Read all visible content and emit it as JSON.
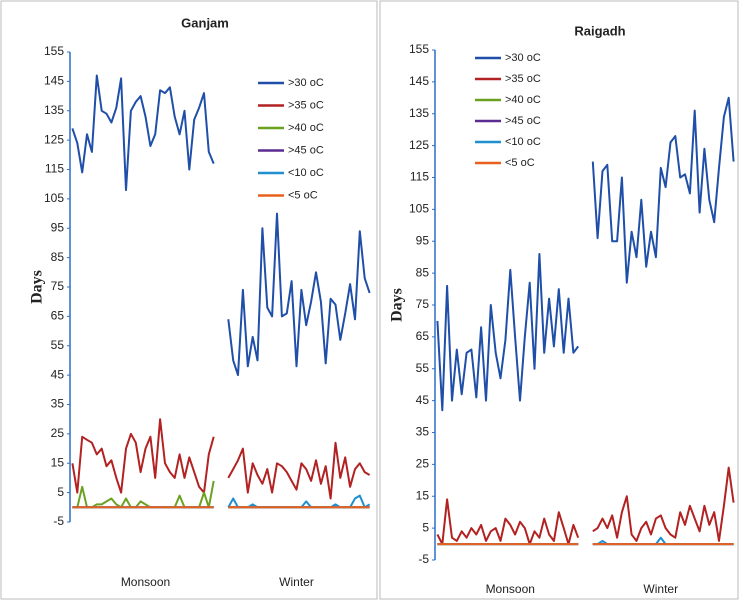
{
  "chart_data": [
    {
      "type": "line",
      "title": "Ganjam",
      "y_label": "Days",
      "legend": "upper right",
      "ylim": [
        -5,
        155
      ],
      "yticks": [
        -5,
        5,
        15,
        25,
        35,
        45,
        55,
        65,
        75,
        85,
        95,
        105,
        115,
        125,
        135,
        145,
        155
      ],
      "categories": [
        null,
        null,
        null,
        null,
        null,
        null,
        null,
        null,
        null,
        null,
        null,
        null,
        null,
        null,
        null,
        "Monsoon",
        null,
        null,
        null,
        null,
        null,
        null,
        null,
        null,
        null,
        null,
        null,
        null,
        null,
        null,
        null,
        null,
        null,
        null,
        null,
        null,
        null,
        null,
        null,
        null,
        null,
        null,
        null,
        null,
        null,
        null,
        "Winter",
        null,
        null,
        null,
        null,
        null,
        null,
        null,
        null,
        null,
        null,
        null,
        null,
        null,
        null,
        null
      ],
      "series": [
        {
          "name": ">30 oC",
          "color": "#1f4fa8",
          "values": [
            129,
            124,
            114,
            127,
            121,
            147,
            135,
            134,
            131,
            136,
            146,
            108,
            135,
            138,
            140,
            133,
            123,
            127,
            142,
            141,
            143,
            133,
            127,
            135,
            115,
            132,
            136,
            141,
            121,
            117,
            null,
            null,
            64,
            50,
            45,
            74,
            48,
            58,
            50,
            95,
            68,
            65,
            100,
            65,
            66,
            77,
            48,
            74,
            62,
            70,
            80,
            70,
            49,
            71,
            69,
            57,
            66,
            76,
            64,
            94,
            78,
            73
          ]
        },
        {
          "name": ">35 oC",
          "color": "#b22222",
          "values": [
            15,
            5,
            24,
            23,
            22,
            18,
            20,
            14,
            16,
            10,
            5,
            20,
            25,
            22,
            12,
            20,
            24,
            10,
            30,
            15,
            12,
            10,
            18,
            10,
            17,
            12,
            7,
            5,
            18,
            24,
            null,
            null,
            10,
            13,
            16,
            20,
            5,
            15,
            11,
            8,
            13,
            5,
            15,
            14,
            12,
            9,
            6,
            15,
            13,
            9,
            16,
            8,
            14,
            3,
            22,
            10,
            17,
            7,
            13,
            15,
            12,
            11
          ]
        },
        {
          "name": ">40 oC",
          "color": "#6aa121",
          "values": [
            0,
            0,
            7,
            0,
            0,
            1,
            1,
            2,
            3,
            1,
            0,
            3,
            0,
            0,
            2,
            1,
            0,
            0,
            0,
            0,
            0,
            0,
            4,
            0,
            0,
            0,
            0,
            5,
            0,
            9,
            null,
            null,
            0,
            0,
            0,
            0,
            0,
            0,
            0,
            0,
            0,
            0,
            0,
            0,
            0,
            0,
            0,
            0,
            0,
            0,
            0,
            0,
            0,
            0,
            0,
            0,
            0,
            0,
            0,
            0,
            0,
            0
          ]
        },
        {
          "name": ">45 oC",
          "color": "#5b2c8f",
          "values": [
            0,
            0,
            0,
            0,
            0,
            0,
            0,
            0,
            0,
            0,
            0,
            0,
            0,
            0,
            0,
            0,
            0,
            0,
            0,
            0,
            0,
            0,
            0,
            0,
            0,
            0,
            0,
            0,
            0,
            0,
            null,
            null,
            0,
            0,
            0,
            0,
            0,
            0,
            0,
            0,
            0,
            0,
            0,
            0,
            0,
            0,
            0,
            0,
            0,
            0,
            0,
            0,
            0,
            0,
            0,
            0,
            0,
            0,
            0,
            0,
            0,
            0
          ]
        },
        {
          "name": "<10 oC",
          "color": "#1f8fcf",
          "values": [
            0,
            0,
            0,
            0,
            0,
            0,
            0,
            0,
            0,
            0,
            0,
            0,
            0,
            0,
            0,
            0,
            0,
            0,
            0,
            0,
            0,
            0,
            0,
            0,
            0,
            0,
            0,
            0,
            0,
            0,
            null,
            null,
            0,
            3,
            0,
            0,
            0,
            1,
            0,
            0,
            0,
            0,
            0,
            0,
            0,
            0,
            0,
            0,
            2,
            0,
            0,
            0,
            0,
            0,
            1,
            0,
            0,
            0,
            3,
            4,
            0,
            1
          ]
        },
        {
          "name": "<5 oC",
          "color": "#e8601c",
          "values": [
            0,
            0,
            0,
            0,
            0,
            0,
            0,
            0,
            0,
            0,
            0,
            0,
            0,
            0,
            0,
            0,
            0,
            0,
            0,
            0,
            0,
            0,
            0,
            0,
            0,
            0,
            0,
            0,
            0,
            0,
            null,
            null,
            0,
            0,
            0,
            0,
            0,
            0,
            0,
            0,
            0,
            0,
            0,
            0,
            0,
            0,
            0,
            0,
            0,
            0,
            0,
            0,
            0,
            0,
            0,
            0,
            0,
            0,
            0,
            0,
            0,
            0
          ]
        }
      ]
    },
    {
      "type": "line",
      "title": "Raigadh",
      "y_label": "Days",
      "legend": "upper left",
      "ylim": [
        -5,
        155
      ],
      "yticks": [
        -5,
        5,
        15,
        25,
        35,
        45,
        55,
        65,
        75,
        85,
        95,
        105,
        115,
        125,
        135,
        145,
        155
      ],
      "categories": [
        null,
        null,
        null,
        null,
        null,
        null,
        null,
        null,
        null,
        null,
        null,
        null,
        null,
        null,
        null,
        "Monsoon",
        null,
        null,
        null,
        null,
        null,
        null,
        null,
        null,
        null,
        null,
        null,
        null,
        null,
        null,
        null,
        null,
        null,
        null,
        null,
        null,
        null,
        null,
        null,
        null,
        null,
        null,
        null,
        null,
        null,
        null,
        "Winter",
        null,
        null,
        null,
        null,
        null,
        null,
        null,
        null,
        null,
        null,
        null,
        null,
        null,
        null,
        null
      ],
      "series": [
        {
          "name": ">30 oC",
          "color": "#1f4fa8",
          "values": [
            70,
            42,
            81,
            45,
            61,
            47,
            60,
            61,
            46,
            68,
            45,
            75,
            60,
            52,
            64,
            86,
            65,
            45,
            65,
            82,
            55,
            91,
            60,
            77,
            62,
            80,
            60,
            77,
            60,
            62,
            null,
            null,
            120,
            96,
            117,
            119,
            95,
            95,
            115,
            82,
            98,
            90,
            108,
            87,
            98,
            90,
            118,
            112,
            126,
            128,
            115,
            116,
            110,
            136,
            104,
            124,
            108,
            101,
            118,
            134,
            140,
            120
          ]
        },
        {
          "name": ">35 oC",
          "color": "#b22222",
          "values": [
            3,
            0,
            14,
            2,
            1,
            4,
            2,
            5,
            3,
            6,
            1,
            4,
            5,
            1,
            8,
            6,
            3,
            7,
            5,
            0,
            4,
            2,
            8,
            3,
            1,
            10,
            5,
            0,
            6,
            2,
            null,
            null,
            4,
            5,
            8,
            5,
            9,
            2,
            10,
            15,
            3,
            1,
            5,
            7,
            3,
            8,
            9,
            5,
            3,
            2,
            10,
            6,
            12,
            8,
            4,
            12,
            6,
            10,
            1,
            12,
            24,
            13
          ]
        },
        {
          "name": ">40 oC",
          "color": "#6aa121",
          "values": [
            0,
            0,
            0,
            0,
            0,
            0,
            0,
            0,
            0,
            0,
            0,
            0,
            0,
            0,
            0,
            0,
            0,
            0,
            0,
            0,
            0,
            0,
            0,
            0,
            0,
            0,
            0,
            0,
            0,
            0,
            null,
            null,
            0,
            0,
            0,
            0,
            0,
            0,
            0,
            0,
            0,
            0,
            0,
            0,
            0,
            0,
            0,
            0,
            0,
            0,
            0,
            0,
            0,
            0,
            0,
            0,
            0,
            0,
            0,
            0,
            0,
            0
          ]
        },
        {
          "name": ">45 oC",
          "color": "#5b2c8f",
          "values": [
            0,
            0,
            0,
            0,
            0,
            0,
            0,
            0,
            0,
            0,
            0,
            0,
            0,
            0,
            0,
            0,
            0,
            0,
            0,
            0,
            0,
            0,
            0,
            0,
            0,
            0,
            0,
            0,
            0,
            0,
            null,
            null,
            0,
            0,
            0,
            0,
            0,
            0,
            0,
            0,
            0,
            0,
            0,
            0,
            0,
            0,
            0,
            0,
            0,
            0,
            0,
            0,
            0,
            0,
            0,
            0,
            0,
            0,
            0,
            0,
            0,
            0
          ]
        },
        {
          "name": "<10 oC",
          "color": "#1f8fcf",
          "values": [
            0,
            0,
            0,
            0,
            0,
            0,
            0,
            0,
            0,
            0,
            0,
            0,
            0,
            0,
            0,
            0,
            0,
            0,
            0,
            0,
            0,
            0,
            0,
            0,
            0,
            0,
            0,
            0,
            0,
            0,
            null,
            null,
            0,
            0,
            1,
            0,
            0,
            0,
            0,
            0,
            0,
            0,
            0,
            0,
            0,
            0,
            2,
            0,
            0,
            0,
            0,
            0,
            0,
            0,
            0,
            0,
            0,
            0,
            0,
            0,
            0,
            0
          ]
        },
        {
          "name": "<5 oC",
          "color": "#e8601c",
          "values": [
            0,
            0,
            0,
            0,
            0,
            0,
            0,
            0,
            0,
            0,
            0,
            0,
            0,
            0,
            0,
            0,
            0,
            0,
            0,
            0,
            0,
            0,
            0,
            0,
            0,
            0,
            0,
            0,
            0,
            0,
            null,
            null,
            0,
            0,
            0,
            0,
            0,
            0,
            0,
            0,
            0,
            0,
            0,
            0,
            0,
            0,
            0,
            0,
            0,
            0,
            0,
            0,
            0,
            0,
            0,
            0,
            0,
            0,
            0,
            0,
            0,
            0
          ]
        }
      ]
    }
  ]
}
